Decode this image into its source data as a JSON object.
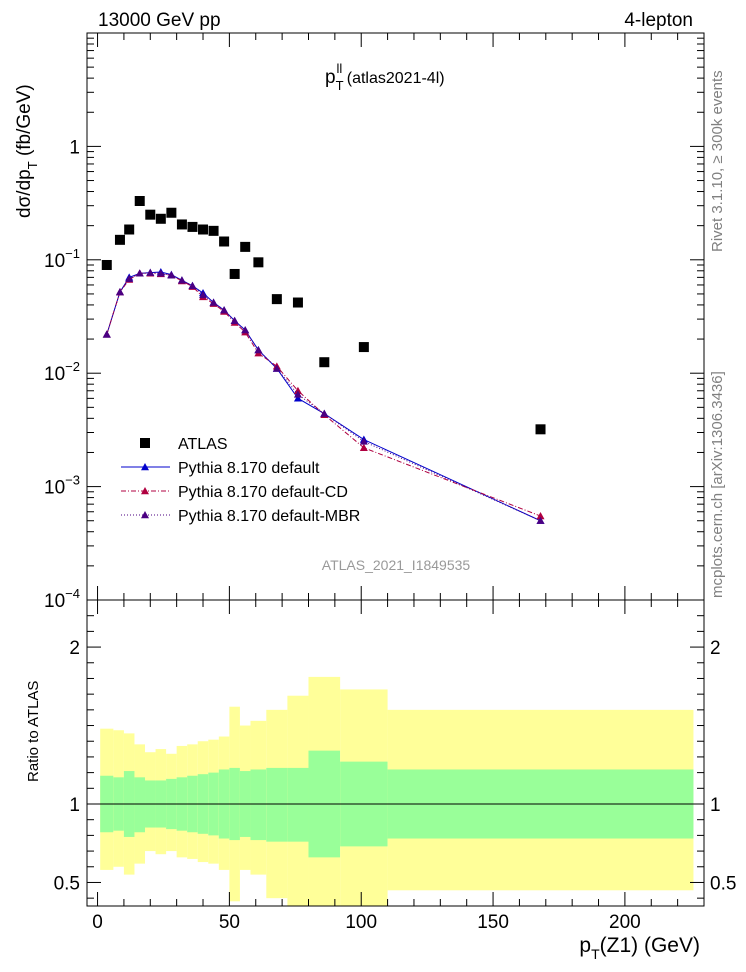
{
  "header": {
    "left": "13000 GeV pp",
    "right": "4-lepton"
  },
  "side_texts": {
    "rivet": "Rivet 3.1.10, ≥ 300k events",
    "mcplots": "mcplots.cern.ch [arXiv:1306.3436]"
  },
  "watermark": "ATLAS_2021_I1849535",
  "chart_data": [
    {
      "type": "scatter",
      "panel": "main",
      "title_main": "p",
      "title_sup": "ll",
      "title_sub": "T",
      "title_suffix": " (atlas2021-4l)",
      "ylabel_main": "dσ/dp",
      "ylabel_sub": "T",
      "ylabel_suffix": " (fb/GeV)",
      "yscale": "log",
      "ylim": [
        0.0001,
        10
      ],
      "xlim": [
        -4,
        230
      ],
      "y_tick_labels": [
        {
          "value": 1,
          "label": "1"
        },
        {
          "value": 0.1,
          "label": "10",
          "exp": "−1"
        },
        {
          "value": 0.01,
          "label": "10",
          "exp": "−2"
        },
        {
          "value": 0.001,
          "label": "10",
          "exp": "−3"
        },
        {
          "value": 0.0001,
          "label": "10",
          "exp": "−4"
        }
      ],
      "legend_position": "middle-left",
      "series": [
        {
          "name": "ATLAS",
          "color": "#000000",
          "marker": "square",
          "line": "none",
          "x": [
            3.5,
            8.5,
            12.0,
            16.0,
            20.0,
            24.0,
            28.0,
            32.0,
            36.0,
            40.0,
            44.0,
            48.0,
            52.0,
            56.0,
            61.0,
            68.0,
            76.0,
            86.0,
            101.0,
            168.0
          ],
          "y": [
            0.09,
            0.15,
            0.185,
            0.33,
            0.25,
            0.23,
            0.26,
            0.205,
            0.195,
            0.185,
            0.18,
            0.145,
            0.075,
            0.13,
            0.095,
            0.045,
            0.042,
            0.0125,
            0.017,
            0.0032
          ]
        },
        {
          "name": "Pythia 8.170 default",
          "color": "#0000cc",
          "marker": "triangle",
          "line": "solid",
          "x": [
            3.5,
            8.5,
            12.0,
            16.0,
            20.0,
            24.0,
            28.0,
            32.0,
            36.0,
            40.0,
            44.0,
            48.0,
            52.0,
            56.0,
            61.0,
            68.0,
            76.0,
            86.0,
            101.0,
            168.0
          ],
          "y": [
            0.022,
            0.052,
            0.07,
            0.076,
            0.077,
            0.078,
            0.074,
            0.066,
            0.059,
            0.051,
            0.042,
            0.036,
            0.029,
            0.024,
            0.016,
            0.011,
            0.006,
            0.0044,
            0.0026,
            0.0005
          ]
        },
        {
          "name": "Pythia 8.170 default-CD",
          "color": "#b00040",
          "marker": "triangle",
          "line": "dashdot",
          "x": [
            3.5,
            8.5,
            12.0,
            16.0,
            20.0,
            24.0,
            28.0,
            32.0,
            36.0,
            40.0,
            44.0,
            48.0,
            52.0,
            56.0,
            61.0,
            68.0,
            76.0,
            86.0,
            101.0,
            168.0
          ],
          "y": [
            0.022,
            0.052,
            0.067,
            0.076,
            0.076,
            0.075,
            0.073,
            0.065,
            0.058,
            0.047,
            0.041,
            0.035,
            0.028,
            0.023,
            0.015,
            0.0115,
            0.007,
            0.0043,
            0.0022,
            0.00055
          ]
        },
        {
          "name": "Pythia 8.170 default-MBR",
          "color": "#4b0082",
          "marker": "triangle",
          "line": "dotted",
          "x": [
            3.5,
            8.5,
            12.0,
            16.0,
            20.0,
            24.0,
            28.0,
            32.0,
            36.0,
            40.0,
            44.0,
            48.0,
            52.0,
            56.0,
            61.0,
            68.0,
            76.0,
            86.0,
            101.0,
            168.0
          ],
          "y": [
            0.022,
            0.052,
            0.068,
            0.076,
            0.077,
            0.076,
            0.073,
            0.066,
            0.059,
            0.049,
            0.042,
            0.036,
            0.029,
            0.024,
            0.016,
            0.011,
            0.0065,
            0.0044,
            0.0025,
            0.0005
          ]
        }
      ]
    },
    {
      "type": "area",
      "panel": "ratio",
      "ylabel": "Ratio to ATLAS",
      "xlabel_main": "p",
      "xlabel_sub": "T",
      "xlabel_suffix": "(Z1) (GeV)",
      "xlim": [
        -4,
        230
      ],
      "ylim": [
        0.35,
        2.3
      ],
      "x_ticks": [
        0,
        50,
        100,
        150,
        200
      ],
      "y_ticks": [
        0.5,
        1,
        2
      ],
      "reference_line": 1,
      "bins": [
        {
          "lo": 1,
          "hi": 6,
          "stat_lo": 0.82,
          "stat_hi": 1.18,
          "tot_lo": 0.58,
          "tot_hi": 1.48
        },
        {
          "lo": 6,
          "hi": 10,
          "stat_lo": 0.83,
          "stat_hi": 1.17,
          "tot_lo": 0.6,
          "tot_hi": 1.47
        },
        {
          "lo": 10,
          "hi": 14,
          "stat_lo": 0.79,
          "stat_hi": 1.21,
          "tot_lo": 0.55,
          "tot_hi": 1.45
        },
        {
          "lo": 14,
          "hi": 18,
          "stat_lo": 0.82,
          "stat_hi": 1.17,
          "tot_lo": 0.62,
          "tot_hi": 1.38
        },
        {
          "lo": 18,
          "hi": 22,
          "stat_lo": 0.85,
          "stat_hi": 1.15,
          "tot_lo": 0.7,
          "tot_hi": 1.33
        },
        {
          "lo": 22,
          "hi": 26,
          "stat_lo": 0.85,
          "stat_hi": 1.15,
          "tot_lo": 0.68,
          "tot_hi": 1.35
        },
        {
          "lo": 26,
          "hi": 30,
          "stat_lo": 0.84,
          "stat_hi": 1.16,
          "tot_lo": 0.7,
          "tot_hi": 1.32
        },
        {
          "lo": 30,
          "hi": 34,
          "stat_lo": 0.83,
          "stat_hi": 1.17,
          "tot_lo": 0.66,
          "tot_hi": 1.37
        },
        {
          "lo": 34,
          "hi": 38,
          "stat_lo": 0.82,
          "stat_hi": 1.18,
          "tot_lo": 0.65,
          "tot_hi": 1.38
        },
        {
          "lo": 38,
          "hi": 42,
          "stat_lo": 0.81,
          "stat_hi": 1.19,
          "tot_lo": 0.63,
          "tot_hi": 1.4
        },
        {
          "lo": 42,
          "hi": 46,
          "stat_lo": 0.8,
          "stat_hi": 1.2,
          "tot_lo": 0.62,
          "tot_hi": 1.41
        },
        {
          "lo": 46,
          "hi": 50,
          "stat_lo": 0.78,
          "stat_hi": 1.22,
          "tot_lo": 0.58,
          "tot_hi": 1.43
        },
        {
          "lo": 50,
          "hi": 54,
          "stat_lo": 0.77,
          "stat_hi": 1.23,
          "tot_lo": 0.38,
          "tot_hi": 1.62
        },
        {
          "lo": 54,
          "hi": 58,
          "stat_lo": 0.79,
          "stat_hi": 1.21,
          "tot_lo": 0.58,
          "tot_hi": 1.5
        },
        {
          "lo": 58,
          "hi": 64,
          "stat_lo": 0.77,
          "stat_hi": 1.22,
          "tot_lo": 0.55,
          "tot_hi": 1.53
        },
        {
          "lo": 64,
          "hi": 72,
          "stat_lo": 0.76,
          "stat_hi": 1.23,
          "tot_lo": 0.4,
          "tot_hi": 1.6
        },
        {
          "lo": 72,
          "hi": 80,
          "stat_lo": 0.76,
          "stat_hi": 1.23,
          "tot_lo": 0.35,
          "tot_hi": 1.69
        },
        {
          "lo": 80,
          "hi": 92,
          "stat_lo": 0.66,
          "stat_hi": 1.34,
          "tot_lo": 0.35,
          "tot_hi": 1.81
        },
        {
          "lo": 92,
          "hi": 110,
          "stat_lo": 0.73,
          "stat_hi": 1.27,
          "tot_lo": 0.35,
          "tot_hi": 1.73
        },
        {
          "lo": 110,
          "hi": 226,
          "stat_lo": 0.78,
          "stat_hi": 1.22,
          "tot_lo": 0.45,
          "tot_hi": 1.6
        }
      ],
      "colors": {
        "stat": "#99ff99",
        "total": "#ffff99"
      }
    }
  ]
}
